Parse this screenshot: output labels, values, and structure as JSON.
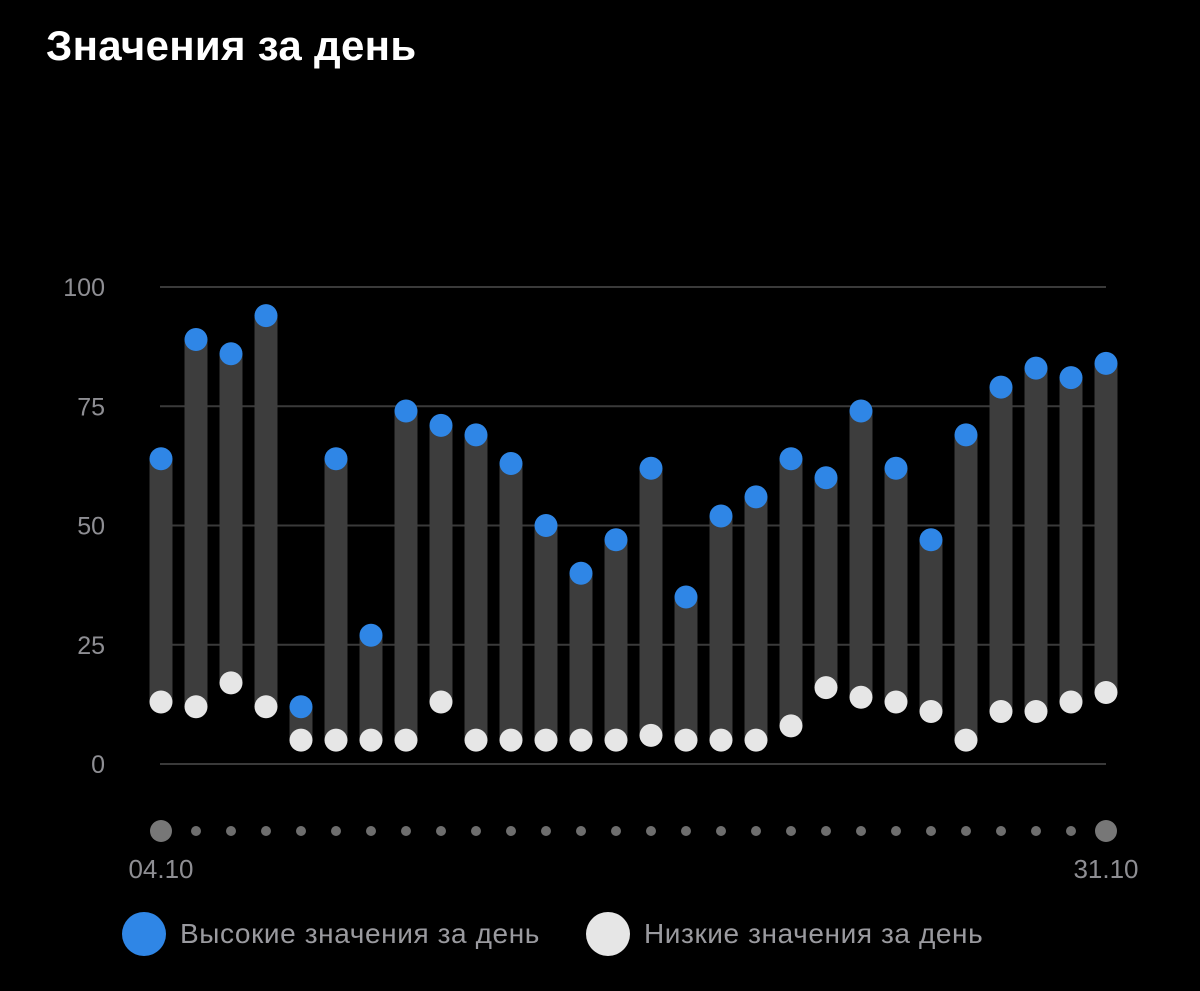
{
  "title": "Значения за день",
  "colors": {
    "background": "#000000",
    "high": "#2f86e6",
    "low": "#e6e6e6",
    "bar": "#3d3d3d",
    "grid": "#3a3a3a",
    "text_muted": "#8e8e93"
  },
  "legend": {
    "high_label": "Высокие значения за день",
    "low_label": "Низкие значения за день"
  },
  "chart_data": {
    "type": "range-bar",
    "title": "Значения за день",
    "ylim": [
      0,
      100
    ],
    "yticks": [
      0,
      25,
      50,
      75,
      100
    ],
    "x_tick_labels": [
      "04.10",
      "31.10"
    ],
    "x_start_label": "04.10",
    "x_end_label": "31.10",
    "grid": true,
    "legend_position": "bottom",
    "series": [
      {
        "name": "Высокие значения за день",
        "values": [
          64,
          89,
          86,
          94,
          12,
          64,
          27,
          74,
          71,
          69,
          63,
          50,
          40,
          47,
          62,
          35,
          52,
          56,
          64,
          60,
          74,
          62,
          47,
          69,
          79,
          83,
          81,
          84
        ]
      },
      {
        "name": "Низкие значения за день",
        "values": [
          13,
          12,
          17,
          12,
          5,
          5,
          5,
          5,
          13,
          5,
          5,
          5,
          5,
          5,
          6,
          5,
          5,
          5,
          8,
          16,
          14,
          13,
          11,
          5,
          11,
          11,
          13,
          15
        ]
      }
    ]
  }
}
